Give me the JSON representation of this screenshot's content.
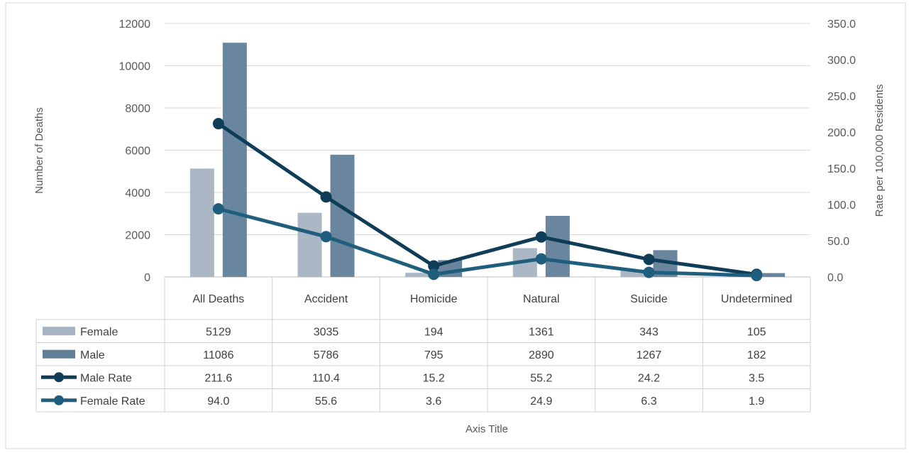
{
  "chart_data": {
    "type": "bar",
    "categories": [
      "All Deaths",
      "Accident",
      "Homicide",
      "Natural",
      "Suicide",
      "Undetermined"
    ],
    "series": [
      {
        "name": "Female",
        "type": "bar",
        "axis": "left",
        "values": [
          5129,
          3035,
          194,
          1361,
          343,
          105
        ],
        "color": "#a6b3c2"
      },
      {
        "name": "Male",
        "type": "bar",
        "axis": "left",
        "values": [
          11086,
          5786,
          795,
          2890,
          1267,
          182
        ],
        "color": "#627f99"
      },
      {
        "name": "Male Rate",
        "type": "line",
        "axis": "right",
        "values": [
          211.6,
          110.4,
          15.2,
          55.2,
          24.2,
          3.5
        ],
        "color": "#0f3d57"
      },
      {
        "name": "Female Rate",
        "type": "line",
        "axis": "right",
        "values": [
          94.0,
          55.6,
          3.6,
          24.9,
          6.3,
          1.9
        ],
        "color": "#1f5e7d"
      }
    ],
    "table_values": {
      "Female": [
        "5129",
        "3035",
        "194",
        "1361",
        "343",
        "105"
      ],
      "Male": [
        "11086",
        "5786",
        "795",
        "2890",
        "1267",
        "182"
      ],
      "Male Rate": [
        "211.6",
        "110.4",
        "15.2",
        "55.2",
        "24.2",
        "3.5"
      ],
      "Female Rate": [
        "94.0",
        "55.6",
        "3.6",
        "24.9",
        "6.3",
        "1.9"
      ]
    },
    "xlabel": "Axis Title",
    "ylabel": "Number of Deaths",
    "y2label": "Rate per 100,000 Residents",
    "ylim": [
      0,
      12000
    ],
    "y2lim": [
      0,
      350
    ],
    "yticks": [
      "0",
      "2000",
      "4000",
      "6000",
      "8000",
      "10000",
      "12000"
    ],
    "y2ticks": [
      "0.0",
      "50.0",
      "100.0",
      "150.0",
      "200.0",
      "250.0",
      "300.0",
      "350.0"
    ],
    "grid": true,
    "legend": "data-table"
  }
}
